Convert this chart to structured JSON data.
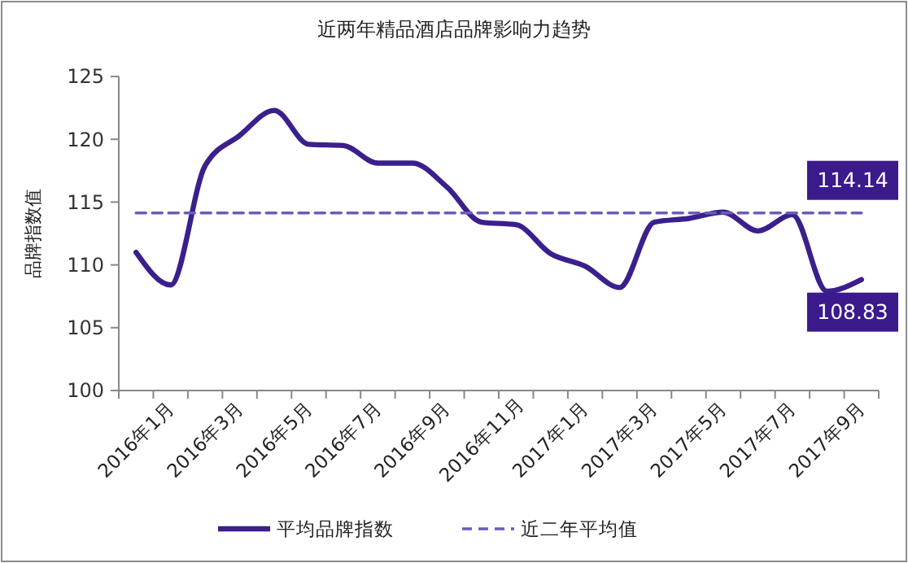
{
  "chart_data": {
    "type": "line",
    "title": "近两年精品酒店品牌影响力趋势",
    "ylabel": "品牌指数值",
    "categories": [
      "2016年1月",
      null,
      "2016年3月",
      null,
      "2016年5月",
      null,
      "2016年7月",
      null,
      "2016年9月",
      null,
      "2016年11月",
      null,
      "2017年1月",
      null,
      "2017年3月",
      null,
      "2017年5月",
      null,
      "2017年7月",
      null,
      "2017年9月",
      null
    ],
    "series": [
      {
        "name": "平均品牌指数",
        "color": "#3b1f8c",
        "line_style": "solid",
        "values": [
          111.0,
          108.4,
          117.9,
          120.3,
          122.3,
          119.6,
          119.5,
          118.1,
          118.1,
          116.2,
          113.4,
          113.2,
          110.9,
          109.9,
          108.2,
          113.4,
          113.7,
          114.2,
          112.7,
          114.0,
          107.9,
          108.83
        ],
        "value_labels": [
          null,
          null,
          null,
          null,
          null,
          null,
          null,
          null,
          null,
          null,
          null,
          null,
          null,
          null,
          null,
          null,
          null,
          null,
          null,
          null,
          null,
          "108.83"
        ]
      },
      {
        "name": "近二年平均值",
        "color": "#6a5cb8",
        "line_style": "dashed",
        "values": [
          114.14,
          114.14,
          114.14,
          114.14,
          114.14,
          114.14,
          114.14,
          114.14,
          114.14,
          114.14,
          114.14,
          114.14,
          114.14,
          114.14,
          114.14,
          114.14,
          114.14,
          114.14,
          114.14,
          114.14,
          114.14,
          114.14
        ],
        "value_labels": [
          null,
          null,
          null,
          null,
          null,
          null,
          null,
          null,
          null,
          null,
          null,
          null,
          null,
          null,
          null,
          null,
          null,
          null,
          null,
          null,
          null,
          "114.14"
        ]
      }
    ],
    "ylim": [
      100,
      125
    ],
    "yticks": [
      100,
      105,
      110,
      115,
      120,
      125
    ],
    "grid": false,
    "legend": "bottom",
    "marker": "none"
  }
}
